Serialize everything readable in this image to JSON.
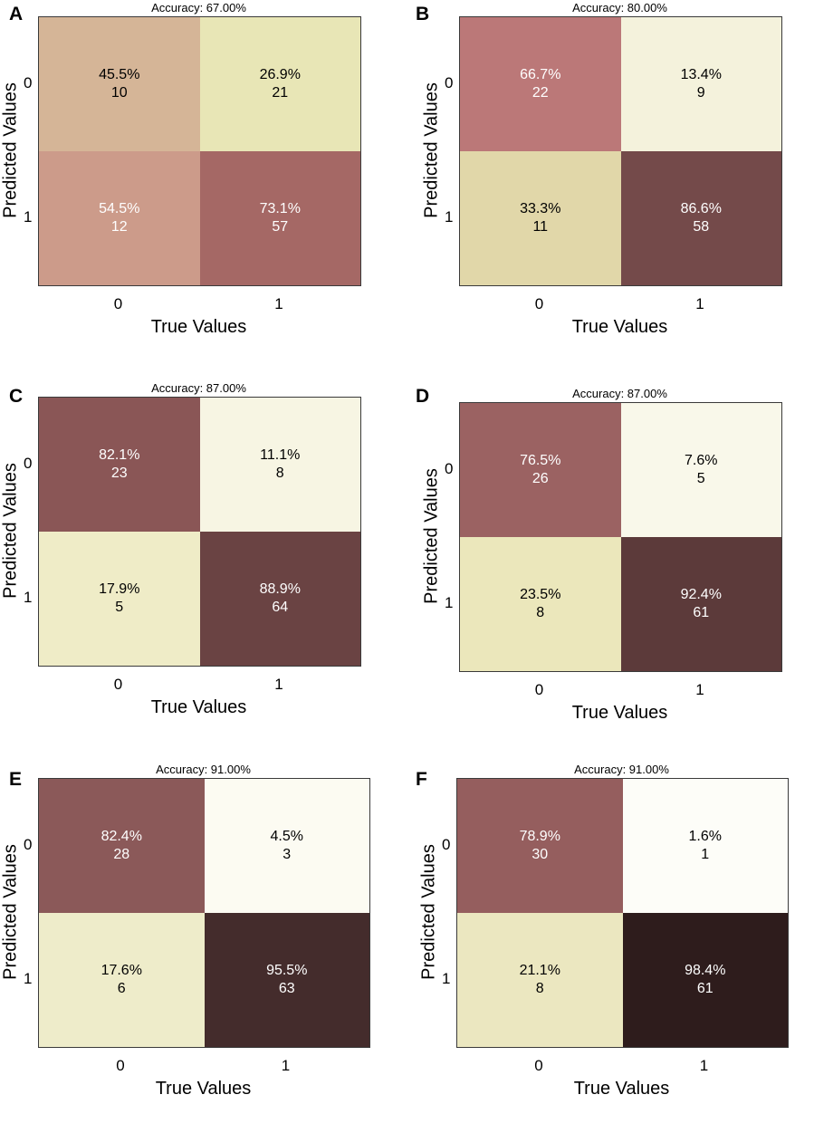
{
  "chart_data": [
    {
      "type": "heatmap",
      "panel": "A",
      "title": "Accuracy: 67.00%",
      "xlabel": "True Values",
      "ylabel": "Predicted Values",
      "x_ticks": [
        "0",
        "1"
      ],
      "y_ticks": [
        "0",
        "1"
      ],
      "cells": [
        [
          {
            "percent": "45.5%",
            "count": "10",
            "color": "#d5b597",
            "text_color": "#000000"
          },
          {
            "percent": "26.9%",
            "count": "21",
            "color": "#e8e6b6",
            "text_color": "#000000"
          }
        ],
        [
          {
            "percent": "54.5%",
            "count": "12",
            "color": "#cc9b8a",
            "text_color": "#ffffff"
          },
          {
            "percent": "73.1%",
            "count": "57",
            "color": "#a56865",
            "text_color": "#ffffff"
          }
        ]
      ]
    },
    {
      "type": "heatmap",
      "panel": "B",
      "title": "Accuracy: 80.00%",
      "xlabel": "True Values",
      "ylabel": "Predicted Values",
      "x_ticks": [
        "0",
        "1"
      ],
      "y_ticks": [
        "0",
        "1"
      ],
      "cells": [
        [
          {
            "percent": "66.7%",
            "count": "22",
            "color": "#bb7878",
            "text_color": "#ffffff"
          },
          {
            "percent": "13.4%",
            "count": "9",
            "color": "#f4f2dc",
            "text_color": "#000000"
          }
        ],
        [
          {
            "percent": "33.3%",
            "count": "11",
            "color": "#e1d7a9",
            "text_color": "#000000"
          },
          {
            "percent": "86.6%",
            "count": "58",
            "color": "#744a4a",
            "text_color": "#ffffff"
          }
        ]
      ]
    },
    {
      "type": "heatmap",
      "panel": "C",
      "title": "Accuracy: 87.00%",
      "xlabel": "True Values",
      "ylabel": "Predicted Values",
      "x_ticks": [
        "0",
        "1"
      ],
      "y_ticks": [
        "0",
        "1"
      ],
      "cells": [
        [
          {
            "percent": "82.1%",
            "count": "23",
            "color": "#8a5656",
            "text_color": "#ffffff"
          },
          {
            "percent": "11.1%",
            "count": "8",
            "color": "#f7f5e3",
            "text_color": "#000000"
          }
        ],
        [
          {
            "percent": "17.9%",
            "count": "5",
            "color": "#efecc7",
            "text_color": "#000000"
          },
          {
            "percent": "88.9%",
            "count": "64",
            "color": "#6a4343",
            "text_color": "#ffffff"
          }
        ]
      ]
    },
    {
      "type": "heatmap",
      "panel": "D",
      "title": "Accuracy: 87.00%",
      "xlabel": "True Values",
      "ylabel": "Predicted Values",
      "x_ticks": [
        "0",
        "1"
      ],
      "y_ticks": [
        "0",
        "1"
      ],
      "cells": [
        [
          {
            "percent": "76.5%",
            "count": "26",
            "color": "#9b6262",
            "text_color": "#ffffff"
          },
          {
            "percent": "7.6%",
            "count": "5",
            "color": "#f9f8ea",
            "text_color": "#000000"
          }
        ],
        [
          {
            "percent": "23.5%",
            "count": "8",
            "color": "#ebe7bb",
            "text_color": "#000000"
          },
          {
            "percent": "92.4%",
            "count": "61",
            "color": "#5c3a3a",
            "text_color": "#ffffff"
          }
        ]
      ]
    },
    {
      "type": "heatmap",
      "panel": "E",
      "title": "Accuracy: 91.00%",
      "xlabel": "True Values",
      "ylabel": "Predicted Values",
      "x_ticks": [
        "0",
        "1"
      ],
      "y_ticks": [
        "0",
        "1"
      ],
      "cells": [
        [
          {
            "percent": "82.4%",
            "count": "28",
            "color": "#8b5959",
            "text_color": "#ffffff"
          },
          {
            "percent": "4.5%",
            "count": "3",
            "color": "#fcfbf2",
            "text_color": "#000000"
          }
        ],
        [
          {
            "percent": "17.6%",
            "count": "6",
            "color": "#eeecca",
            "text_color": "#000000"
          },
          {
            "percent": "95.5%",
            "count": "63",
            "color": "#442c2c",
            "text_color": "#ffffff"
          }
        ]
      ]
    },
    {
      "type": "heatmap",
      "panel": "F",
      "title": "Accuracy: 91.00%",
      "xlabel": "True Values",
      "ylabel": "Predicted Values",
      "x_ticks": [
        "0",
        "1"
      ],
      "y_ticks": [
        "0",
        "1"
      ],
      "cells": [
        [
          {
            "percent": "78.9%",
            "count": "30",
            "color": "#955e5e",
            "text_color": "#ffffff"
          },
          {
            "percent": "1.6%",
            "count": "1",
            "color": "#fdfdf8",
            "text_color": "#000000"
          }
        ],
        [
          {
            "percent": "21.1%",
            "count": "8",
            "color": "#ebe7c0",
            "text_color": "#000000"
          },
          {
            "percent": "98.4%",
            "count": "61",
            "color": "#2e1c1c",
            "text_color": "#ffffff"
          }
        ]
      ]
    }
  ]
}
